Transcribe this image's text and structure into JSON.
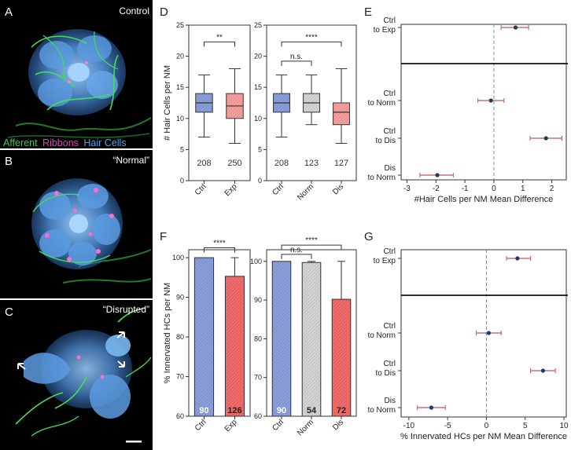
{
  "panels": {
    "A": {
      "letter": "A",
      "title": "Control"
    },
    "B": {
      "letter": "B",
      "title": "“Normal”"
    },
    "C": {
      "letter": "C",
      "title": "“Disrupted”"
    },
    "D": "D",
    "E": "E",
    "F": "F",
    "G": "G"
  },
  "legend": {
    "afferent": "Afferent",
    "ribbons": "Ribbons",
    "hair_cells": "Hair Cells",
    "colors": {
      "afferent": "#35d04a",
      "ribbons": "#e040c0",
      "hair_cells": "#3fa9f5"
    }
  },
  "colors": {
    "blue": "#8a9fd8",
    "blue_dark": "#5a6fb0",
    "red": "#f08a8a",
    "red_dark": "#d04a4a",
    "gray": "#cfcfcf",
    "navy": "#1f3a68",
    "err": "#c0555f"
  },
  "chart_data": [
    {
      "id": "D1",
      "type": "box",
      "ylabel": "# Hair Cells per NM",
      "ylim": [
        0,
        25
      ],
      "yticks": [
        0,
        5,
        10,
        15,
        20,
        25
      ],
      "categories": [
        "Ctrl",
        "Exp"
      ],
      "boxes": [
        {
          "min": 7,
          "q1": 11,
          "median": 12.5,
          "q3": 14,
          "max": 17,
          "fill": "blue"
        },
        {
          "min": 6,
          "q1": 10,
          "median": 12,
          "q3": 14,
          "max": 18,
          "fill": "red"
        }
      ],
      "n": [
        "208",
        "250"
      ],
      "brackets": [
        {
          "from": 0,
          "to": 1,
          "y": 22.3,
          "label": "**"
        }
      ]
    },
    {
      "id": "D2",
      "type": "box",
      "ylim": [
        0,
        25
      ],
      "yticks": [
        0,
        5,
        10,
        15,
        20,
        25
      ],
      "categories": [
        "Ctrl",
        "Norm",
        "Dis"
      ],
      "boxes": [
        {
          "min": 7,
          "q1": 11,
          "median": 12.5,
          "q3": 14,
          "max": 17,
          "fill": "blue"
        },
        {
          "min": 9,
          "q1": 11,
          "median": 12.5,
          "q3": 14,
          "max": 17,
          "fill": "gray"
        },
        {
          "min": 6,
          "q1": 9,
          "median": 11,
          "q3": 12.5,
          "max": 18,
          "fill": "red"
        }
      ],
      "n": [
        "208",
        "123",
        "127"
      ],
      "brackets": [
        {
          "from": 0,
          "to": 1,
          "y": 19.2,
          "label": "n.s."
        },
        {
          "from": 0,
          "to": 2,
          "y": 22.3,
          "label": "****"
        }
      ]
    },
    {
      "id": "E",
      "type": "forest",
      "xlabel": "#Hair Cells per NM Mean Difference",
      "xlim": [
        -3.2,
        2.5
      ],
      "xticks": [
        -3,
        -2,
        -1,
        0,
        1,
        2
      ],
      "comparisons": [
        {
          "label_1": "Ctrl",
          "label_2": "to Exp",
          "mean": 0.75,
          "lo": 0.25,
          "hi": 1.2
        },
        {
          "label_1": "Ctrl",
          "label_2": "to Norm",
          "mean": -0.1,
          "lo": -0.55,
          "hi": 0.35
        },
        {
          "label_1": "Ctrl",
          "label_2": "to Dis",
          "mean": 1.8,
          "lo": 1.25,
          "hi": 2.35
        },
        {
          "label_1": "Dis",
          "label_2": "to Norm",
          "mean": -1.95,
          "lo": -2.55,
          "hi": -1.4
        }
      ]
    },
    {
      "id": "F1",
      "type": "bar",
      "ylabel": "% Innervated HCs per NM",
      "ylim": [
        60,
        102
      ],
      "yticks": [
        60,
        70,
        80,
        90,
        100
      ],
      "categories": [
        "Ctrl",
        "Exp"
      ],
      "values": [
        100,
        95.3
      ],
      "err_hi": [
        100,
        100
      ],
      "fills": [
        "blue",
        "red"
      ],
      "n": [
        "90",
        "126"
      ],
      "brackets": [
        {
          "from": 0,
          "to": 1,
          "y": 102.5,
          "label": "****"
        }
      ]
    },
    {
      "id": "F2",
      "type": "bar",
      "ylim": [
        60,
        103
      ],
      "yticks": [
        60,
        70,
        80,
        90,
        100
      ],
      "categories": [
        "Ctrl",
        "Norm",
        "Dis"
      ],
      "values": [
        100,
        99.7,
        90.2
      ],
      "err_hi": [
        100,
        100,
        100
      ],
      "fills": [
        "blue",
        "gray",
        "red"
      ],
      "n": [
        "90",
        "54",
        "72"
      ],
      "brackets": [
        {
          "from": 0,
          "to": 1,
          "y": 101.8,
          "label": "n.s."
        },
        {
          "from": 0,
          "to": 2,
          "y": 104.2,
          "label": "****"
        }
      ]
    },
    {
      "id": "G",
      "type": "forest",
      "xlabel": "% Innervated HCs per NM Mean Difference",
      "xlim": [
        -11,
        10.3
      ],
      "xticks": [
        -10,
        -5,
        0,
        5,
        10
      ],
      "comparisons": [
        {
          "label_1": "Ctrl",
          "label_2": "to Exp",
          "mean": 4.0,
          "lo": 2.6,
          "hi": 5.7
        },
        {
          "label_1": "Ctrl",
          "label_2": "to Norm",
          "mean": 0.3,
          "lo": -1.3,
          "hi": 1.9
        },
        {
          "label_1": "Ctrl",
          "label_2": "to Dis",
          "mean": 7.3,
          "lo": 5.7,
          "hi": 8.9
        },
        {
          "label_1": "Dis",
          "label_2": "to Norm",
          "mean": -7.1,
          "lo": -8.9,
          "hi": -5.3
        }
      ]
    }
  ]
}
